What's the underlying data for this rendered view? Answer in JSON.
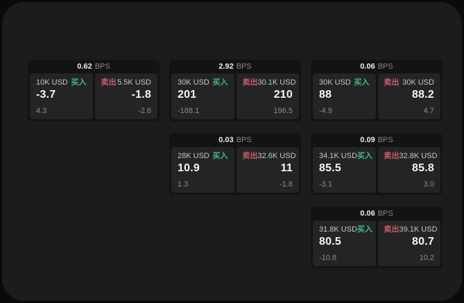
{
  "labels": {
    "bps_unit": "BPS",
    "buy": "买入",
    "sell": "卖出"
  },
  "colors": {
    "outer_bg": "#0a0a0a",
    "app_panel_bg": "#1c1c1d",
    "card_bg": "#131314",
    "tile_bg": "#242426",
    "buy_green": "#42b97d",
    "sell_red": "#ca5a6c",
    "main_text": "#f5f5f5",
    "muted_text": "#8d8d8d"
  },
  "cards": [
    {
      "bps": "0.62",
      "buy": {
        "notional": "10K USD",
        "price": "-3.7",
        "sub": "4.3"
      },
      "sell": {
        "notional": "5.5K USD",
        "price": "-1.8",
        "sub": "-2.6"
      }
    },
    {
      "bps": "2.92",
      "buy": {
        "notional": "30K USD",
        "price": "201",
        "sub": "-188.1"
      },
      "sell": {
        "notional": "30.1K USD",
        "price": "210",
        "sub": "196.5"
      }
    },
    {
      "bps": "0.06",
      "buy": {
        "notional": "30K USD",
        "price": "88",
        "sub": "-4.9"
      },
      "sell": {
        "notional": "30K USD",
        "price": "88.2",
        "sub": "4.7"
      }
    },
    {
      "bps": "0.03",
      "buy": {
        "notional": "28K USD",
        "price": "10.9",
        "sub": "1.3"
      },
      "sell": {
        "notional": "32.6K USD",
        "price": "11",
        "sub": "-1.8"
      }
    },
    {
      "bps": "0.09",
      "buy": {
        "notional": "34.1K USD",
        "price": "85.5",
        "sub": "-3.1"
      },
      "sell": {
        "notional": "32.8K USD",
        "price": "85.8",
        "sub": "3.0"
      }
    },
    {
      "bps": "0.06",
      "buy": {
        "notional": "31.8K USD",
        "price": "80.5",
        "sub": "-10.8"
      },
      "sell": {
        "notional": "39.1K USD",
        "price": "80.7",
        "sub": "10.2"
      }
    }
  ]
}
